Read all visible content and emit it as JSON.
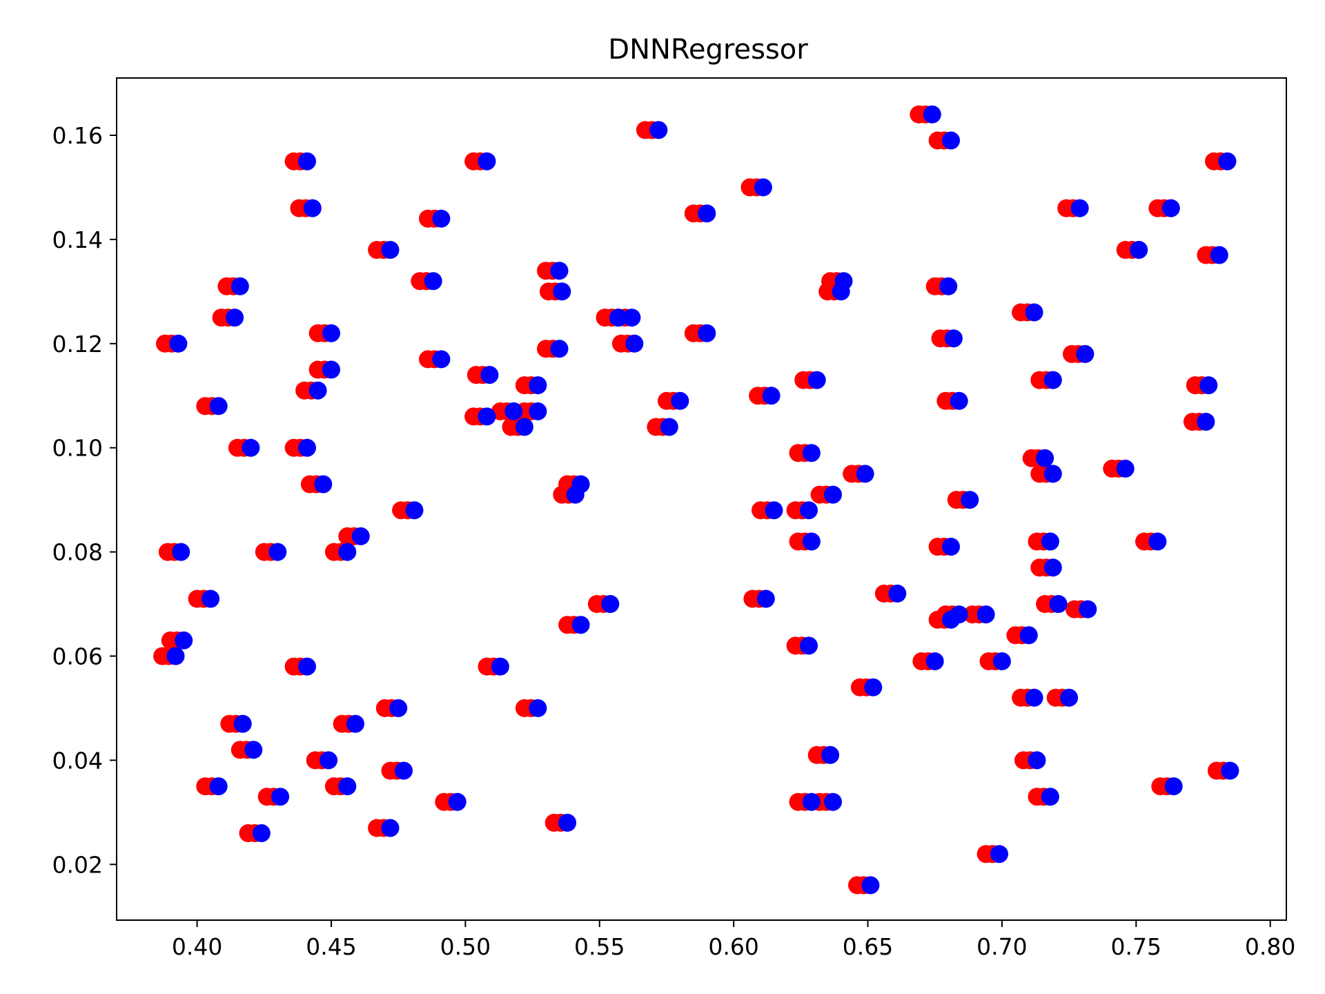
{
  "chart_data": {
    "type": "scatter",
    "title": "DNNRegressor",
    "xlabel": "",
    "ylabel": "",
    "xlim": [
      0.37,
      0.806
    ],
    "ylim": [
      0.0093,
      0.171
    ],
    "grid": false,
    "legend": "none",
    "x_ticks": [
      0.4,
      0.45,
      0.5,
      0.55,
      0.6,
      0.65,
      0.7,
      0.75,
      0.8
    ],
    "x_tick_labels": [
      "0.40",
      "0.45",
      "0.50",
      "0.55",
      "0.60",
      "0.65",
      "0.70",
      "0.75",
      "0.80"
    ],
    "y_ticks": [
      0.02,
      0.04,
      0.06,
      0.08,
      0.1,
      0.12,
      0.14,
      0.16
    ],
    "y_tick_labels": [
      "0.02",
      "0.04",
      "0.06",
      "0.08",
      "0.10",
      "0.12",
      "0.14",
      "0.16"
    ],
    "series": [
      {
        "color": "#ff0000",
        "offsets": [
          -0.005,
          -0.0025
        ],
        "points": [
          [
            0.393,
            0.12
          ],
          [
            0.394,
            0.08
          ],
          [
            0.395,
            0.063
          ],
          [
            0.392,
            0.06
          ],
          [
            0.405,
            0.071
          ],
          [
            0.408,
            0.108
          ],
          [
            0.408,
            0.035
          ],
          [
            0.414,
            0.125
          ],
          [
            0.416,
            0.131
          ],
          [
            0.42,
            0.1
          ],
          [
            0.417,
            0.047
          ],
          [
            0.421,
            0.042
          ],
          [
            0.424,
            0.026
          ],
          [
            0.43,
            0.08
          ],
          [
            0.431,
            0.033
          ],
          [
            0.441,
            0.155
          ],
          [
            0.443,
            0.146
          ],
          [
            0.441,
            0.1
          ],
          [
            0.445,
            0.111
          ],
          [
            0.441,
            0.058
          ],
          [
            0.45,
            0.122
          ],
          [
            0.45,
            0.115
          ],
          [
            0.447,
            0.093
          ],
          [
            0.456,
            0.08
          ],
          [
            0.461,
            0.083
          ],
          [
            0.459,
            0.047
          ],
          [
            0.456,
            0.035
          ],
          [
            0.449,
            0.04
          ],
          [
            0.472,
            0.138
          ],
          [
            0.475,
            0.05
          ],
          [
            0.472,
            0.027
          ],
          [
            0.477,
            0.038
          ],
          [
            0.481,
            0.088
          ],
          [
            0.488,
            0.132
          ],
          [
            0.491,
            0.144
          ],
          [
            0.491,
            0.117
          ],
          [
            0.497,
            0.032
          ],
          [
            0.508,
            0.155
          ],
          [
            0.509,
            0.114
          ],
          [
            0.508,
            0.106
          ],
          [
            0.513,
            0.058
          ],
          [
            0.518,
            0.107
          ],
          [
            0.522,
            0.104
          ],
          [
            0.527,
            0.107
          ],
          [
            0.527,
            0.112
          ],
          [
            0.527,
            0.05
          ],
          [
            0.535,
            0.134
          ],
          [
            0.536,
            0.13
          ],
          [
            0.535,
            0.119
          ],
          [
            0.538,
            0.028
          ],
          [
            0.543,
            0.093
          ],
          [
            0.541,
            0.091
          ],
          [
            0.543,
            0.066
          ],
          [
            0.554,
            0.07
          ],
          [
            0.557,
            0.125
          ],
          [
            0.562,
            0.125
          ],
          [
            0.563,
            0.12
          ],
          [
            0.572,
            0.161
          ],
          [
            0.576,
            0.104
          ],
          [
            0.58,
            0.109
          ],
          [
            0.59,
            0.145
          ],
          [
            0.59,
            0.122
          ],
          [
            0.611,
            0.15
          ],
          [
            0.614,
            0.11
          ],
          [
            0.612,
            0.071
          ],
          [
            0.615,
            0.088
          ],
          [
            0.628,
            0.088
          ],
          [
            0.629,
            0.099
          ],
          [
            0.631,
            0.113
          ],
          [
            0.629,
            0.082
          ],
          [
            0.628,
            0.062
          ],
          [
            0.629,
            0.032
          ],
          [
            0.636,
            0.041
          ],
          [
            0.637,
            0.091
          ],
          [
            0.637,
            0.032
          ],
          [
            0.64,
            0.13
          ],
          [
            0.641,
            0.132
          ],
          [
            0.649,
            0.095
          ],
          [
            0.652,
            0.054
          ],
          [
            0.651,
            0.016
          ],
          [
            0.661,
            0.072
          ],
          [
            0.674,
            0.164
          ],
          [
            0.675,
            0.059
          ],
          [
            0.681,
            0.159
          ],
          [
            0.68,
            0.131
          ],
          [
            0.682,
            0.121
          ],
          [
            0.681,
            0.081
          ],
          [
            0.681,
            0.067
          ],
          [
            0.684,
            0.068
          ],
          [
            0.684,
            0.109
          ],
          [
            0.688,
            0.09
          ],
          [
            0.694,
            0.068
          ],
          [
            0.7,
            0.059
          ],
          [
            0.699,
            0.022
          ],
          [
            0.71,
            0.064
          ],
          [
            0.712,
            0.126
          ],
          [
            0.712,
            0.052
          ],
          [
            0.713,
            0.04
          ],
          [
            0.716,
            0.098
          ],
          [
            0.719,
            0.095
          ],
          [
            0.719,
            0.113
          ],
          [
            0.718,
            0.082
          ],
          [
            0.719,
            0.077
          ],
          [
            0.721,
            0.07
          ],
          [
            0.718,
            0.033
          ],
          [
            0.725,
            0.052
          ],
          [
            0.729,
            0.146
          ],
          [
            0.731,
            0.118
          ],
          [
            0.732,
            0.069
          ],
          [
            0.746,
            0.096
          ],
          [
            0.751,
            0.138
          ],
          [
            0.758,
            0.082
          ],
          [
            0.763,
            0.146
          ],
          [
            0.764,
            0.035
          ],
          [
            0.777,
            0.112
          ],
          [
            0.776,
            0.105
          ],
          [
            0.781,
            0.137
          ],
          [
            0.784,
            0.155
          ],
          [
            0.785,
            0.038
          ]
        ]
      },
      {
        "color": "#0000ff",
        "offsets": [
          0
        ],
        "points": [
          [
            0.393,
            0.12
          ],
          [
            0.394,
            0.08
          ],
          [
            0.395,
            0.063
          ],
          [
            0.392,
            0.06
          ],
          [
            0.405,
            0.071
          ],
          [
            0.408,
            0.108
          ],
          [
            0.408,
            0.035
          ],
          [
            0.414,
            0.125
          ],
          [
            0.416,
            0.131
          ],
          [
            0.42,
            0.1
          ],
          [
            0.417,
            0.047
          ],
          [
            0.421,
            0.042
          ],
          [
            0.424,
            0.026
          ],
          [
            0.43,
            0.08
          ],
          [
            0.431,
            0.033
          ],
          [
            0.441,
            0.155
          ],
          [
            0.443,
            0.146
          ],
          [
            0.441,
            0.1
          ],
          [
            0.445,
            0.111
          ],
          [
            0.441,
            0.058
          ],
          [
            0.45,
            0.122
          ],
          [
            0.45,
            0.115
          ],
          [
            0.447,
            0.093
          ],
          [
            0.456,
            0.08
          ],
          [
            0.461,
            0.083
          ],
          [
            0.459,
            0.047
          ],
          [
            0.456,
            0.035
          ],
          [
            0.449,
            0.04
          ],
          [
            0.472,
            0.138
          ],
          [
            0.475,
            0.05
          ],
          [
            0.472,
            0.027
          ],
          [
            0.477,
            0.038
          ],
          [
            0.481,
            0.088
          ],
          [
            0.488,
            0.132
          ],
          [
            0.491,
            0.144
          ],
          [
            0.491,
            0.117
          ],
          [
            0.497,
            0.032
          ],
          [
            0.508,
            0.155
          ],
          [
            0.509,
            0.114
          ],
          [
            0.508,
            0.106
          ],
          [
            0.513,
            0.058
          ],
          [
            0.518,
            0.107
          ],
          [
            0.522,
            0.104
          ],
          [
            0.527,
            0.107
          ],
          [
            0.527,
            0.112
          ],
          [
            0.527,
            0.05
          ],
          [
            0.535,
            0.134
          ],
          [
            0.536,
            0.13
          ],
          [
            0.535,
            0.119
          ],
          [
            0.538,
            0.028
          ],
          [
            0.543,
            0.093
          ],
          [
            0.541,
            0.091
          ],
          [
            0.543,
            0.066
          ],
          [
            0.554,
            0.07
          ],
          [
            0.557,
            0.125
          ],
          [
            0.562,
            0.125
          ],
          [
            0.563,
            0.12
          ],
          [
            0.572,
            0.161
          ],
          [
            0.576,
            0.104
          ],
          [
            0.58,
            0.109
          ],
          [
            0.59,
            0.145
          ],
          [
            0.59,
            0.122
          ],
          [
            0.611,
            0.15
          ],
          [
            0.614,
            0.11
          ],
          [
            0.612,
            0.071
          ],
          [
            0.615,
            0.088
          ],
          [
            0.628,
            0.088
          ],
          [
            0.629,
            0.099
          ],
          [
            0.631,
            0.113
          ],
          [
            0.629,
            0.082
          ],
          [
            0.628,
            0.062
          ],
          [
            0.629,
            0.032
          ],
          [
            0.636,
            0.041
          ],
          [
            0.637,
            0.091
          ],
          [
            0.637,
            0.032
          ],
          [
            0.64,
            0.13
          ],
          [
            0.641,
            0.132
          ],
          [
            0.649,
            0.095
          ],
          [
            0.652,
            0.054
          ],
          [
            0.651,
            0.016
          ],
          [
            0.661,
            0.072
          ],
          [
            0.674,
            0.164
          ],
          [
            0.675,
            0.059
          ],
          [
            0.681,
            0.159
          ],
          [
            0.68,
            0.131
          ],
          [
            0.682,
            0.121
          ],
          [
            0.681,
            0.081
          ],
          [
            0.681,
            0.067
          ],
          [
            0.684,
            0.068
          ],
          [
            0.684,
            0.109
          ],
          [
            0.688,
            0.09
          ],
          [
            0.694,
            0.068
          ],
          [
            0.7,
            0.059
          ],
          [
            0.699,
            0.022
          ],
          [
            0.71,
            0.064
          ],
          [
            0.712,
            0.126
          ],
          [
            0.712,
            0.052
          ],
          [
            0.713,
            0.04
          ],
          [
            0.716,
            0.098
          ],
          [
            0.719,
            0.095
          ],
          [
            0.719,
            0.113
          ],
          [
            0.718,
            0.082
          ],
          [
            0.719,
            0.077
          ],
          [
            0.721,
            0.07
          ],
          [
            0.718,
            0.033
          ],
          [
            0.725,
            0.052
          ],
          [
            0.729,
            0.146
          ],
          [
            0.731,
            0.118
          ],
          [
            0.732,
            0.069
          ],
          [
            0.746,
            0.096
          ],
          [
            0.751,
            0.138
          ],
          [
            0.758,
            0.082
          ],
          [
            0.763,
            0.146
          ],
          [
            0.764,
            0.035
          ],
          [
            0.777,
            0.112
          ],
          [
            0.776,
            0.105
          ],
          [
            0.781,
            0.137
          ],
          [
            0.784,
            0.155
          ],
          [
            0.785,
            0.038
          ]
        ]
      }
    ]
  }
}
